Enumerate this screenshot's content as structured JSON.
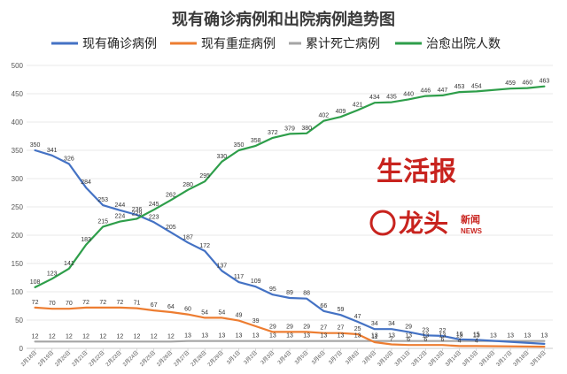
{
  "colors": {
    "current": "#4472c4",
    "severe": "#ed7d31",
    "deaths": "#a5a5a5",
    "recovered": "#2e9e4a",
    "logo": "#c8231e"
  },
  "watermark": {
    "line1": "生活报",
    "line2": "龙头",
    "news_cn": "新闻",
    "news_en": "NEWS"
  },
  "chart_data": {
    "type": "line",
    "title": "现有确诊病例和出院病例趋势图",
    "legend_position": "top",
    "grid": true,
    "ylim": [
      0,
      500
    ],
    "yticks": [
      0,
      50,
      100,
      150,
      200,
      250,
      300,
      350,
      400,
      450,
      500
    ],
    "categories": [
      "2月18日",
      "2月19日",
      "2月20日",
      "2月21日",
      "2月22日",
      "2月23日",
      "2月24日",
      "2月25日",
      "2月26日",
      "2月27日",
      "2月28日",
      "2月29日",
      "3月1日",
      "3月2日",
      "3月3日",
      "3月4日",
      "3月5日",
      "3月6日",
      "3月7日",
      "3月8日",
      "3月9日",
      "3月10日",
      "3月11日",
      "3月12日",
      "3月13日",
      "3月14日",
      "3月15日",
      "3月16日",
      "3月17日",
      "3月18日",
      "3月19日"
    ],
    "series": [
      {
        "key": "current",
        "name": "现有确诊病例",
        "values": [
          350,
          341,
          326,
          284,
          253,
          244,
          236,
          223,
          205,
          187,
          172,
          137,
          117,
          109,
          95,
          89,
          88,
          66,
          59,
          47,
          34,
          34,
          29,
          23,
          22,
          16,
          15,
          null,
          null,
          null,
          8
        ],
        "labels": [
          "350",
          "341",
          "326",
          "284",
          "253",
          "244",
          "236",
          "223",
          "205",
          "187",
          "172",
          "137",
          "117",
          "109",
          "95",
          "89",
          "88",
          "66",
          "59",
          "47",
          "34",
          "34",
          "29",
          "23",
          "22",
          "16",
          "15",
          "",
          "",
          "",
          ""
        ]
      },
      {
        "key": "severe",
        "name": "现有重症病例",
        "values": [
          72,
          70,
          70,
          72,
          72,
          72,
          71,
          67,
          64,
          60,
          54,
          54,
          49,
          39,
          29,
          29,
          29,
          27,
          27,
          25,
          11,
          7,
          6,
          6,
          6,
          4,
          4,
          null,
          null,
          null,
          3
        ],
        "labels": [
          "72",
          "70",
          "70",
          "72",
          "72",
          "72",
          "71",
          "67",
          "64",
          "60",
          "54",
          "54",
          "49",
          "39",
          "29",
          "29",
          "29",
          "27",
          "27",
          "25",
          "11",
          "7",
          "6",
          "6",
          "6",
          "4",
          "4",
          "",
          "",
          "",
          ""
        ]
      },
      {
        "key": "deaths",
        "name": "累计死亡病例",
        "values": [
          12,
          12,
          12,
          12,
          12,
          12,
          12,
          12,
          12,
          13,
          13,
          13,
          13,
          13,
          13,
          13,
          13,
          13,
          13,
          13,
          13,
          13,
          13,
          13,
          13,
          13,
          13,
          13,
          13,
          13,
          13
        ],
        "labels": [
          "12",
          "12",
          "12",
          "12",
          "12",
          "12",
          "12",
          "12",
          "12",
          "13",
          "13",
          "13",
          "13",
          "13",
          "13",
          "13",
          "13",
          "13",
          "13",
          "13",
          "13",
          "13",
          "13",
          "13",
          "13",
          "13",
          "13",
          "13",
          "13",
          "13",
          "13"
        ]
      },
      {
        "key": "recovered",
        "name": "治愈出院人数",
        "values": [
          108,
          123,
          141,
          183,
          215,
          224,
          229,
          245,
          262,
          280,
          295,
          330,
          350,
          358,
          372,
          379,
          380,
          402,
          409,
          421,
          434,
          435,
          440,
          446,
          447,
          453,
          454,
          null,
          459,
          460,
          463
        ],
        "labels": [
          "108",
          "123",
          "141",
          "183",
          "215",
          "224",
          "229",
          "245",
          "262",
          "280",
          "295",
          "330",
          "350",
          "358",
          "372",
          "379",
          "380",
          "402",
          "409",
          "421",
          "434",
          "435",
          "440",
          "446",
          "447",
          "453",
          "454",
          "",
          "459",
          "460",
          "463"
        ]
      }
    ]
  }
}
